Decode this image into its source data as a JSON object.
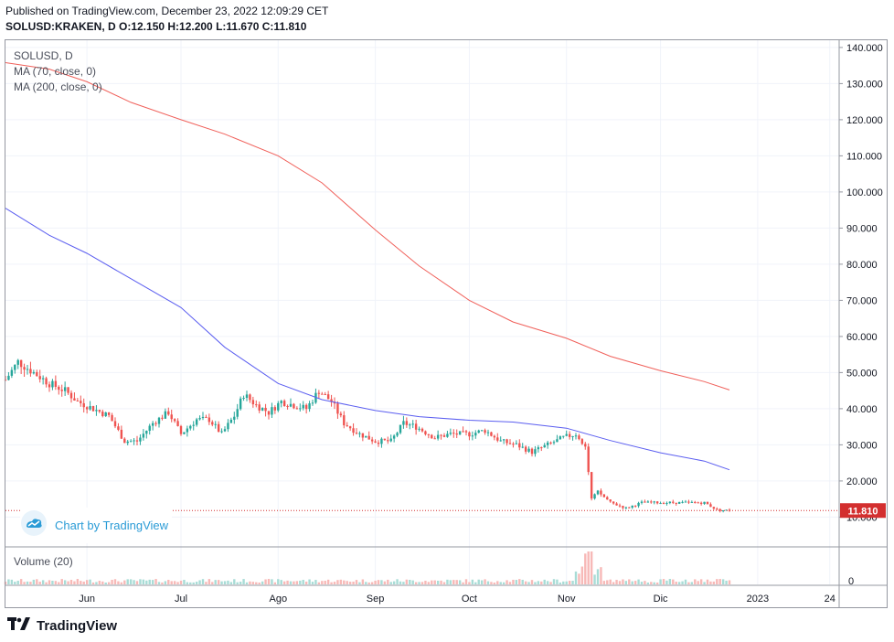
{
  "header": {
    "published": "Published on TradingView.com, December 23, 2022 12:09:29 CET",
    "ohlc": "SOLUSD:KRAKEN, D  O:12.150  H:12.200  L:11.670  C:11.810"
  },
  "legend": {
    "symbol": "SOLUSD, D",
    "ma70": "MA (70, close, 0)",
    "ma200": "MA (200, close, 0)",
    "volume": "Volume (20)"
  },
  "watermark": {
    "text": "Chart by TradingView",
    "icon": "tradingview-cloud-icon"
  },
  "footer": {
    "brand": "TradingView",
    "icon": "tv-logo-icon"
  },
  "colors": {
    "up": "#26a69a",
    "down": "#ef5350",
    "ma70": "#5b5ef0",
    "ma200": "#f0605a",
    "grid": "#f0f3fa",
    "price_line": "#d32f2f",
    "vol_up": "#a8dcd6",
    "vol_down": "#f7b9b7"
  },
  "chart_data": {
    "type": "candlestick",
    "x_axis": {
      "labels": [
        {
          "label": "Jun",
          "date": "2022-06-01"
        },
        {
          "label": "Jul",
          "date": "2022-07-01"
        },
        {
          "label": "Ago",
          "date": "2022-08-01"
        },
        {
          "label": "Sep",
          "date": "2022-09-01"
        },
        {
          "label": "Oct",
          "date": "2022-10-01"
        },
        {
          "label": "Nov",
          "date": "2022-11-01"
        },
        {
          "label": "Dic",
          "date": "2022-12-01"
        },
        {
          "label": "2023",
          "date": "2023-01-01"
        },
        {
          "label": "24",
          "date": "2023-01-24"
        }
      ],
      "range": [
        "2022-05-06",
        "2023-01-27"
      ]
    },
    "y_axis": {
      "ticks": [
        "140.000",
        "130.000",
        "120.000",
        "110.000",
        "100.000",
        "90.000",
        "80.000",
        "70.000",
        "60.000",
        "50.000",
        "40.000",
        "30.000",
        "20.000",
        "10.000"
      ],
      "range": [
        2,
        142
      ]
    },
    "last_price": {
      "label": "11.810",
      "value": 11.81
    },
    "volume_axis": {
      "ticks": [
        "0"
      ]
    },
    "ma70": [
      [
        "2022-05-06",
        95.5
      ],
      [
        "2022-05-20",
        88
      ],
      [
        "2022-06-01",
        83
      ],
      [
        "2022-06-15",
        76
      ],
      [
        "2022-07-01",
        68
      ],
      [
        "2022-07-15",
        57
      ],
      [
        "2022-08-01",
        47
      ],
      [
        "2022-08-15",
        42.5
      ],
      [
        "2022-09-01",
        39.5
      ],
      [
        "2022-09-15",
        37.8
      ],
      [
        "2022-10-01",
        36.8
      ],
      [
        "2022-10-15",
        36.3
      ],
      [
        "2022-11-01",
        34.6
      ],
      [
        "2022-11-15",
        31.2
      ],
      [
        "2022-12-01",
        27.8
      ],
      [
        "2022-12-15",
        25.5
      ],
      [
        "2022-12-23",
        23.1
      ]
    ],
    "ma200": [
      [
        "2022-05-06",
        135.8
      ],
      [
        "2022-05-20",
        134
      ],
      [
        "2022-06-01",
        130.5
      ],
      [
        "2022-06-15",
        124.8
      ],
      [
        "2022-07-01",
        120
      ],
      [
        "2022-07-15",
        116
      ],
      [
        "2022-08-01",
        110
      ],
      [
        "2022-08-15",
        102.5
      ],
      [
        "2022-09-01",
        89.5
      ],
      [
        "2022-09-15",
        79.5
      ],
      [
        "2022-10-01",
        70
      ],
      [
        "2022-10-15",
        64
      ],
      [
        "2022-11-01",
        59.5
      ],
      [
        "2022-11-15",
        54.5
      ],
      [
        "2022-12-01",
        50.5
      ],
      [
        "2022-12-15",
        47.5
      ],
      [
        "2022-12-23",
        45.2
      ]
    ],
    "close_path": [
      [
        "2022-05-06",
        48
      ],
      [
        "2022-05-10",
        53
      ],
      [
        "2022-05-15",
        50
      ],
      [
        "2022-05-20",
        47
      ],
      [
        "2022-05-25",
        45
      ],
      [
        "2022-05-29",
        42
      ],
      [
        "2022-06-03",
        40
      ],
      [
        "2022-06-08",
        38
      ],
      [
        "2022-06-13",
        31
      ],
      [
        "2022-06-17",
        31
      ],
      [
        "2022-06-22",
        36
      ],
      [
        "2022-06-27",
        39
      ],
      [
        "2022-07-01",
        33
      ],
      [
        "2022-07-06",
        37
      ],
      [
        "2022-07-10",
        37
      ],
      [
        "2022-07-14",
        33
      ],
      [
        "2022-07-18",
        38
      ],
      [
        "2022-07-21",
        44
      ],
      [
        "2022-07-25",
        41
      ],
      [
        "2022-07-29",
        39
      ],
      [
        "2022-08-02",
        42
      ],
      [
        "2022-08-06",
        41
      ],
      [
        "2022-08-10",
        40
      ],
      [
        "2022-08-14",
        45
      ],
      [
        "2022-08-18",
        42
      ],
      [
        "2022-08-22",
        36
      ],
      [
        "2022-08-27",
        33
      ],
      [
        "2022-09-01",
        31
      ],
      [
        "2022-09-06",
        31
      ],
      [
        "2022-09-10",
        36
      ],
      [
        "2022-09-14",
        35
      ],
      [
        "2022-09-20",
        32
      ],
      [
        "2022-09-25",
        33
      ],
      [
        "2022-10-01",
        33
      ],
      [
        "2022-10-06",
        34
      ],
      [
        "2022-10-11",
        31
      ],
      [
        "2022-10-16",
        30
      ],
      [
        "2022-10-21",
        28
      ],
      [
        "2022-10-26",
        30
      ],
      [
        "2022-10-31",
        32
      ],
      [
        "2022-11-04",
        33
      ],
      [
        "2022-11-07",
        30
      ],
      [
        "2022-11-09",
        15
      ],
      [
        "2022-11-11",
        17
      ],
      [
        "2022-11-15",
        14
      ],
      [
        "2022-11-20",
        12.5
      ],
      [
        "2022-11-25",
        14
      ],
      [
        "2022-11-30",
        14
      ],
      [
        "2022-12-05",
        14
      ],
      [
        "2022-12-10",
        14
      ],
      [
        "2022-12-15",
        14
      ],
      [
        "2022-12-19",
        12
      ],
      [
        "2022-12-23",
        11.81
      ]
    ]
  }
}
